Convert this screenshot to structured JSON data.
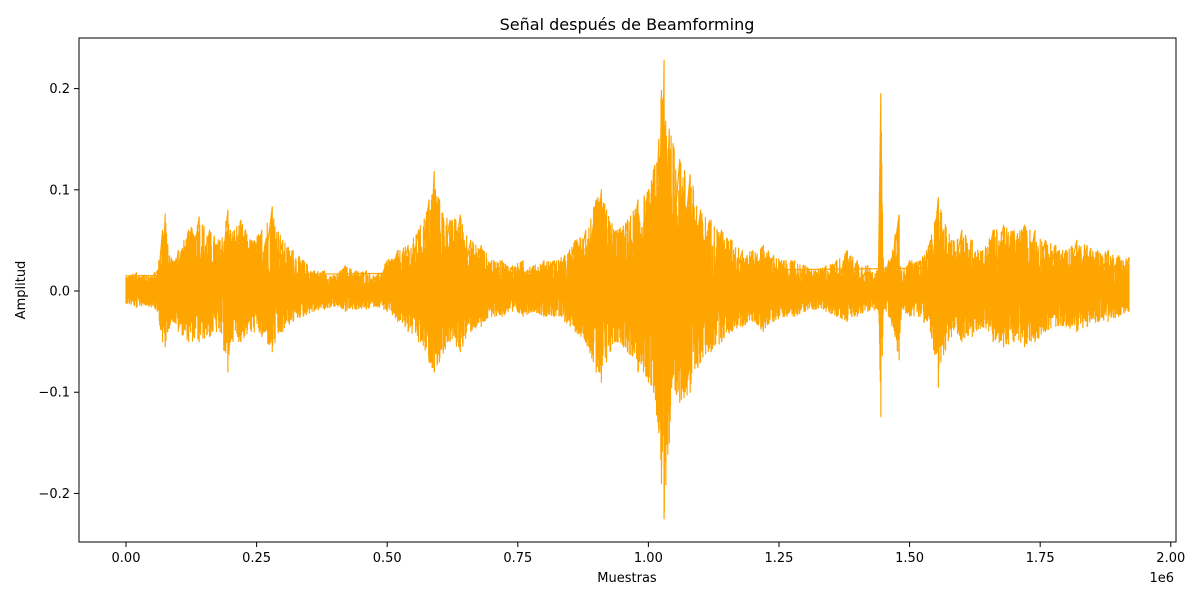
{
  "chart_data": {
    "type": "line",
    "title": "Señal después de Beamforming",
    "xlabel": "Muestras",
    "ylabel": "Amplitud",
    "x_offset_label": "1e6",
    "xlim": [
      -90000,
      2010000
    ],
    "ylim": [
      -0.248,
      0.25
    ],
    "x_ticks": [
      0,
      250000,
      500000,
      750000,
      1000000,
      1250000,
      1500000,
      1750000,
      2000000
    ],
    "x_tick_labels": [
      "0.00",
      "0.25",
      "0.50",
      "0.75",
      "1.00",
      "1.25",
      "1.50",
      "1.75",
      "2.00"
    ],
    "y_ticks": [
      -0.2,
      -0.1,
      0.0,
      0.1,
      0.2
    ],
    "y_tick_labels": [
      "−0.2",
      "−0.1",
      "0.0",
      "0.1",
      "0.2"
    ],
    "grid": false,
    "line_color": "#FFA500",
    "series": [
      {
        "x": [
          0,
          20000,
          40000,
          60000,
          70000,
          75000,
          80000,
          90000,
          100000,
          120000,
          140000,
          160000,
          180000,
          195000,
          200000,
          220000,
          240000,
          260000,
          280000,
          300000,
          320000,
          340000,
          360000,
          380000,
          400000,
          420000,
          440000,
          460000,
          480000,
          500000,
          520000,
          540000,
          560000,
          580000,
          590000,
          600000,
          620000,
          640000,
          660000,
          680000,
          700000,
          720000,
          740000,
          760000,
          780000,
          800000,
          820000,
          840000,
          860000,
          880000,
          900000,
          910000,
          920000,
          940000,
          960000,
          980000,
          1000000,
          1010000,
          1020000,
          1025000,
          1030000,
          1040000,
          1060000,
          1080000,
          1100000,
          1120000,
          1140000,
          1160000,
          1180000,
          1200000,
          1220000,
          1240000,
          1260000,
          1280000,
          1300000,
          1320000,
          1340000,
          1360000,
          1380000,
          1400000,
          1420000,
          1440000,
          1445000,
          1450000,
          1460000,
          1480000,
          1485000,
          1500000,
          1520000,
          1540000,
          1555000,
          1560000,
          1580000,
          1600000,
          1620000,
          1640000,
          1660000,
          1680000,
          1700000,
          1720000,
          1740000,
          1760000,
          1780000,
          1800000,
          1820000,
          1840000,
          1860000,
          1880000,
          1900000,
          1920000
        ],
        "upper": [
          0.015,
          0.018,
          0.015,
          0.02,
          0.06,
          0.076,
          0.045,
          0.03,
          0.04,
          0.06,
          0.073,
          0.06,
          0.05,
          0.08,
          0.06,
          0.07,
          0.05,
          0.06,
          0.083,
          0.05,
          0.04,
          0.03,
          0.02,
          0.02,
          0.015,
          0.025,
          0.02,
          0.02,
          0.015,
          0.03,
          0.04,
          0.045,
          0.06,
          0.09,
          0.118,
          0.09,
          0.07,
          0.075,
          0.05,
          0.045,
          0.03,
          0.03,
          0.025,
          0.03,
          0.025,
          0.03,
          0.03,
          0.035,
          0.05,
          0.06,
          0.09,
          0.1,
          0.08,
          0.06,
          0.07,
          0.09,
          0.1,
          0.12,
          0.15,
          0.198,
          0.228,
          0.16,
          0.13,
          0.115,
          0.08,
          0.07,
          0.06,
          0.05,
          0.04,
          0.04,
          0.045,
          0.035,
          0.03,
          0.03,
          0.025,
          0.02,
          0.025,
          0.03,
          0.04,
          0.03,
          0.025,
          0.02,
          0.195,
          0.02,
          0.03,
          0.075,
          0.02,
          0.03,
          0.03,
          0.05,
          0.092,
          0.08,
          0.05,
          0.06,
          0.05,
          0.04,
          0.06,
          0.065,
          0.06,
          0.065,
          0.06,
          0.05,
          0.045,
          0.04,
          0.05,
          0.045,
          0.04,
          0.04,
          0.035,
          0.033
        ],
        "lower": [
          -0.012,
          -0.016,
          -0.014,
          -0.02,
          -0.05,
          -0.055,
          -0.04,
          -0.03,
          -0.04,
          -0.05,
          -0.05,
          -0.045,
          -0.04,
          -0.08,
          -0.05,
          -0.05,
          -0.04,
          -0.045,
          -0.06,
          -0.04,
          -0.03,
          -0.025,
          -0.02,
          -0.018,
          -0.015,
          -0.02,
          -0.018,
          -0.018,
          -0.015,
          -0.02,
          -0.03,
          -0.04,
          -0.05,
          -0.07,
          -0.08,
          -0.07,
          -0.05,
          -0.06,
          -0.04,
          -0.035,
          -0.025,
          -0.025,
          -0.02,
          -0.025,
          -0.02,
          -0.025,
          -0.025,
          -0.03,
          -0.04,
          -0.05,
          -0.08,
          -0.09,
          -0.07,
          -0.05,
          -0.06,
          -0.08,
          -0.09,
          -0.1,
          -0.14,
          -0.19,
          -0.225,
          -0.15,
          -0.11,
          -0.1,
          -0.07,
          -0.06,
          -0.05,
          -0.04,
          -0.035,
          -0.03,
          -0.04,
          -0.03,
          -0.025,
          -0.025,
          -0.02,
          -0.018,
          -0.02,
          -0.025,
          -0.03,
          -0.025,
          -0.02,
          -0.018,
          -0.124,
          -0.018,
          -0.025,
          -0.068,
          -0.018,
          -0.025,
          -0.025,
          -0.04,
          -0.095,
          -0.07,
          -0.045,
          -0.05,
          -0.045,
          -0.035,
          -0.05,
          -0.055,
          -0.05,
          -0.055,
          -0.05,
          -0.04,
          -0.035,
          -0.035,
          -0.04,
          -0.035,
          -0.03,
          -0.03,
          -0.025,
          -0.02
        ]
      }
    ]
  }
}
